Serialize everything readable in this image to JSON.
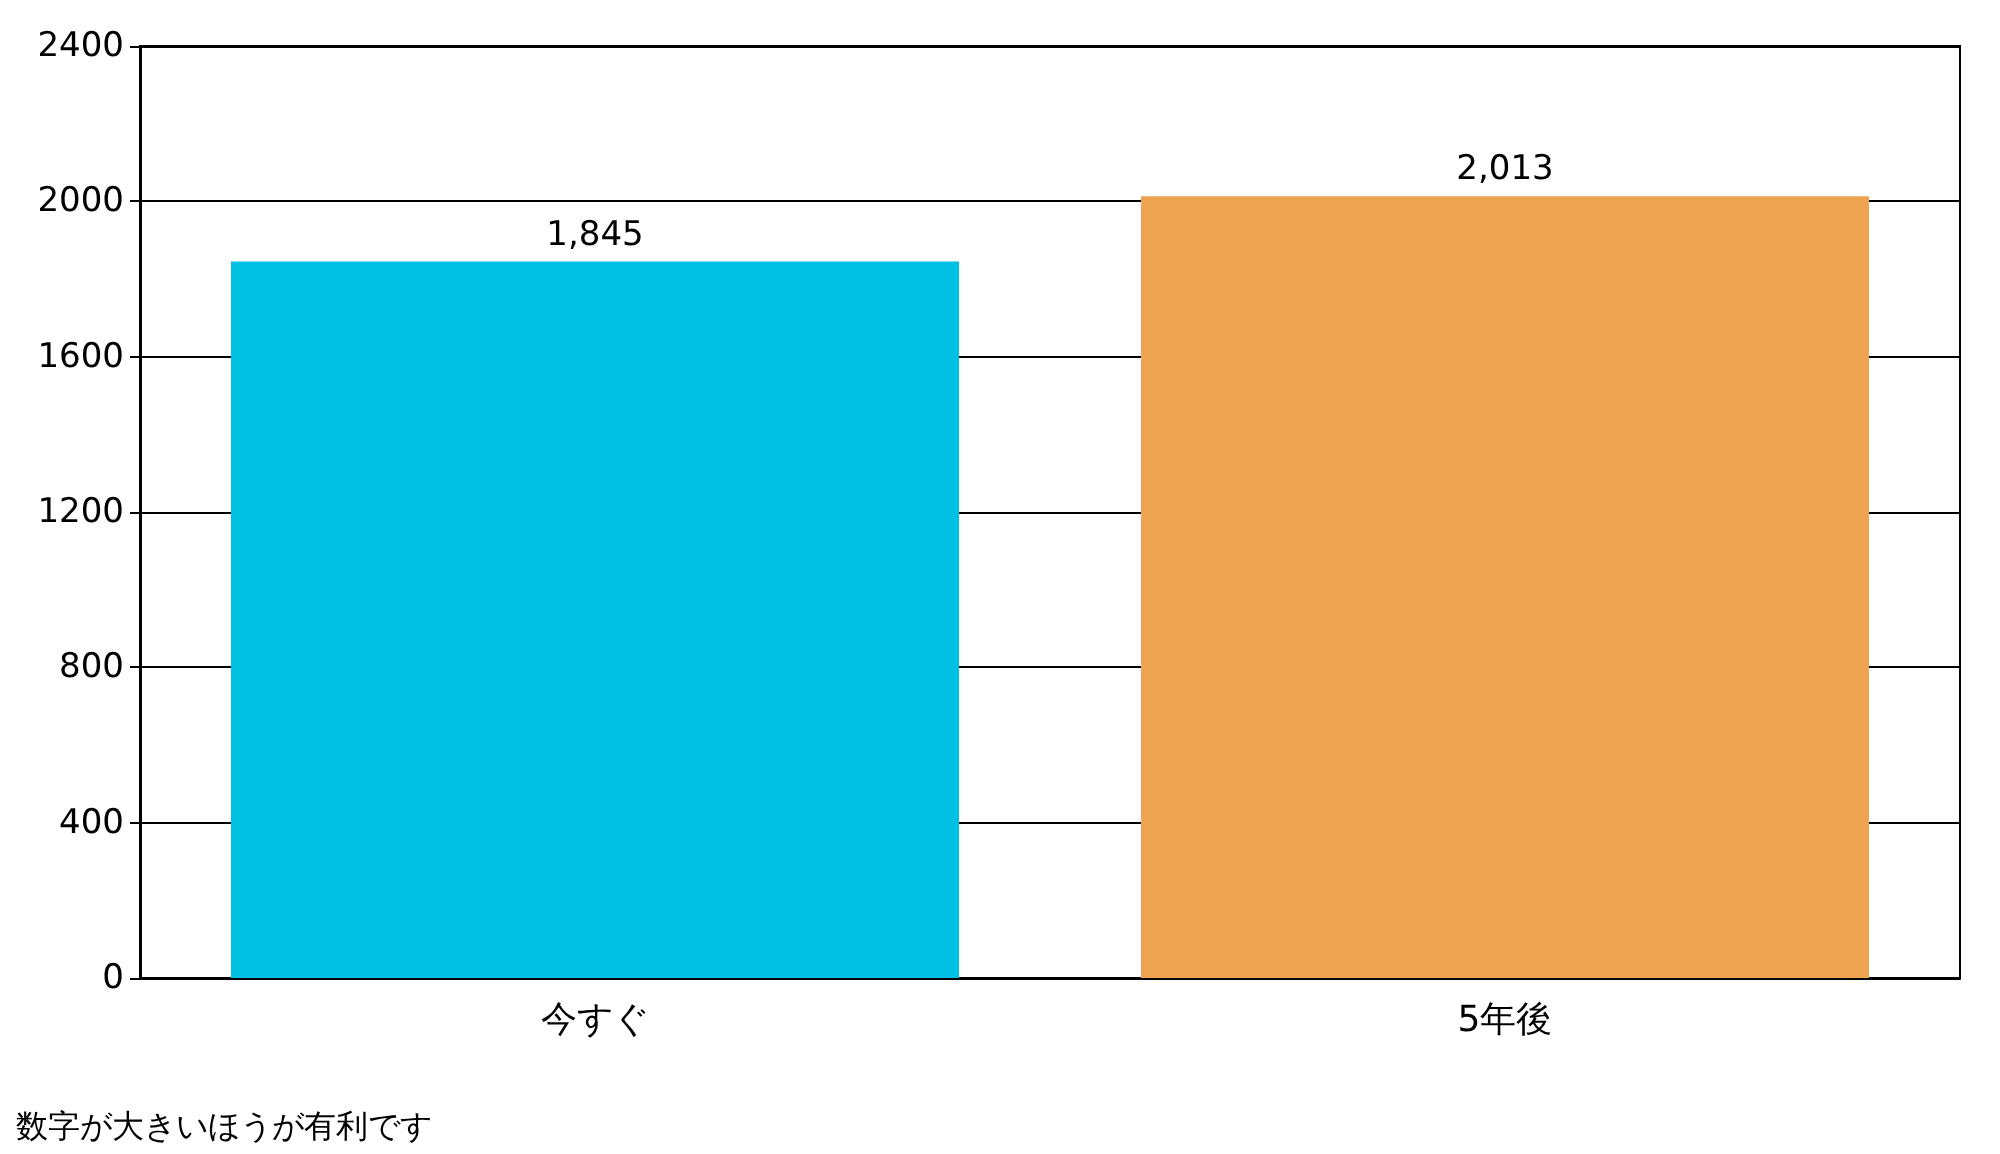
{
  "chart_data": {
    "type": "bar",
    "categories": [
      "今すぐ",
      "5年後"
    ],
    "values": [
      1845,
      2013
    ],
    "colors": [
      "#00c0e4",
      "#eda350"
    ],
    "value_labels": [
      "1,845",
      "2,013"
    ],
    "ylim": [
      0,
      2400
    ],
    "yticks": [
      0,
      400,
      800,
      1200,
      1600,
      2000,
      2400
    ],
    "grid": "y",
    "annotations": [
      "数字が大きいほうが有利です"
    ]
  }
}
